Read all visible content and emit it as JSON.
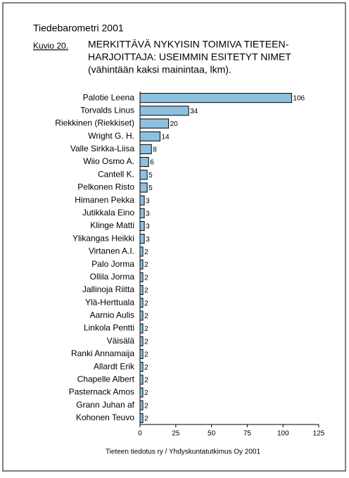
{
  "header": "Tiedebarometri 2001",
  "figure_label": "Kuvio 20.",
  "chart_data": {
    "type": "bar",
    "orientation": "horizontal",
    "title": [
      "MERKITTÄVÄ NYKYISIN TOIMIVA TIETEEN-",
      "HARJOITTAJA: USEIMMIN ESITETYT NIMET"
    ],
    "subtitle": "(vähintään kaksi mainintaa, lkm).",
    "categories": [
      "Palotie Leena",
      "Torvalds Linus",
      "Riekkinen (Riekkiset)",
      "Wright G. H.",
      "Valle Sirkka-Liisa",
      "Wiio Osmo A.",
      "Cantell K.",
      "Pelkonen Risto",
      "Himanen Pekka",
      "Jutikkala Eino",
      "Klinge Matti",
      "Ylikangas Heikki",
      "Virtanen A.I.",
      "Palo Jorma",
      "Ollila Jorma",
      "Jallinoja Riitta",
      "Ylä-Herttuala",
      "Aarnio Aulis",
      "Linkola Pentti",
      "Väisälä",
      "Ranki Annamaija",
      "Allardt Erik",
      "Chapelle Albert",
      "Pasternack Amos",
      "Grann Juhan af",
      "Kohonen Teuvo"
    ],
    "values": [
      106,
      34,
      20,
      14,
      8,
      6,
      5,
      5,
      3,
      3,
      3,
      3,
      2,
      2,
      2,
      2,
      2,
      2,
      2,
      2,
      2,
      2,
      2,
      2,
      2,
      2
    ],
    "color": "#8dc1e0",
    "xlim": [
      0,
      125
    ],
    "xticks": [
      0,
      25,
      50,
      75,
      100,
      125
    ]
  },
  "source": "Tieteen tiedotus ry / Yhdyskuntatutkimus Oy 2001"
}
